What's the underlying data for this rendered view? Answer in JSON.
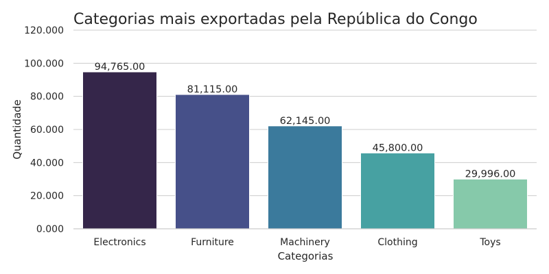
{
  "chart_data": {
    "type": "bar",
    "title": "Categorias mais exportadas pela República do Congo",
    "xlabel": "Categorias",
    "ylabel": "Quantidade",
    "categories": [
      "Electronics",
      "Furniture",
      "Machinery",
      "Clothing",
      "Toys"
    ],
    "values": [
      94765,
      81115,
      62145,
      45800,
      29996
    ],
    "data_labels": [
      "94,765.00",
      "81,115.00",
      "62,145.00",
      "45,800.00",
      "29,996.00"
    ],
    "y_ticks": [
      0,
      20000,
      40000,
      60000,
      80000,
      100000,
      120000
    ],
    "y_tick_labels": [
      "0.000",
      "20.000",
      "40.000",
      "60.000",
      "80.000",
      "100.000",
      "120.000"
    ],
    "ylim": [
      0,
      120000
    ],
    "grid": "horizontal",
    "colors": [
      "#35264a",
      "#465089",
      "#3b7a9c",
      "#47a1a2",
      "#86c9aa"
    ]
  }
}
